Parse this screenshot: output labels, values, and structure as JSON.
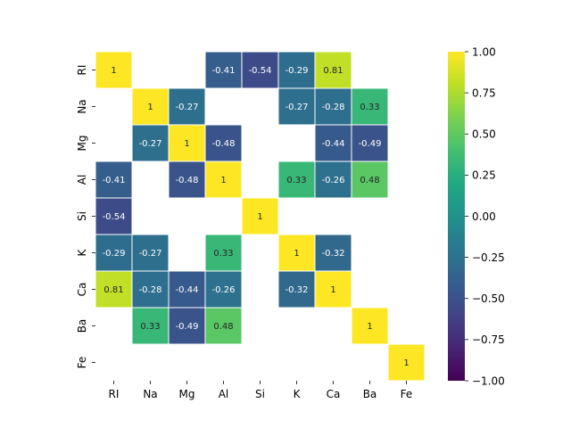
{
  "chart_data": {
    "type": "heatmap",
    "title": "",
    "xlabel": "",
    "ylabel": "",
    "row_labels": [
      "RI",
      "Na",
      "Mg",
      "Al",
      "Si",
      "K",
      "Ca",
      "Ba",
      "Fe"
    ],
    "col_labels": [
      "RI",
      "Na",
      "Mg",
      "Al",
      "Si",
      "K",
      "Ca",
      "Ba",
      "Fe"
    ],
    "values": [
      [
        1,
        null,
        null,
        -0.41,
        -0.54,
        -0.29,
        0.81,
        null,
        null
      ],
      [
        null,
        1,
        -0.27,
        null,
        null,
        -0.27,
        -0.28,
        0.33,
        null
      ],
      [
        null,
        -0.27,
        1,
        -0.48,
        null,
        null,
        -0.44,
        -0.49,
        null
      ],
      [
        -0.41,
        null,
        -0.48,
        1,
        null,
        0.33,
        -0.26,
        0.48,
        null
      ],
      [
        -0.54,
        null,
        null,
        null,
        1,
        null,
        null,
        null,
        null
      ],
      [
        -0.29,
        -0.27,
        null,
        0.33,
        null,
        1,
        -0.32,
        null,
        null
      ],
      [
        0.81,
        -0.28,
        -0.44,
        -0.26,
        null,
        -0.32,
        1,
        null,
        null
      ],
      [
        null,
        0.33,
        -0.49,
        0.48,
        null,
        null,
        null,
        1,
        null
      ],
      [
        null,
        null,
        null,
        null,
        null,
        null,
        null,
        null,
        1
      ]
    ],
    "value_labels": [
      [
        "1",
        "",
        "",
        "-0.41",
        "-0.54",
        "-0.29",
        "0.81",
        "",
        ""
      ],
      [
        "",
        "1",
        "-0.27",
        "",
        "",
        "-0.27",
        "-0.28",
        "0.33",
        ""
      ],
      [
        "",
        "-0.27",
        "1",
        "-0.48",
        "",
        "",
        "-0.44",
        "-0.49",
        ""
      ],
      [
        "-0.41",
        "",
        "-0.48",
        "1",
        "",
        "0.33",
        "-0.26",
        "0.48",
        ""
      ],
      [
        "-0.54",
        "",
        "",
        "",
        "1",
        "",
        "",
        "",
        ""
      ],
      [
        "-0.29",
        "-0.27",
        "",
        "0.33",
        "",
        "1",
        "-0.32",
        "",
        ""
      ],
      [
        "0.81",
        "-0.28",
        "-0.44",
        "-0.26",
        "",
        "-0.32",
        "1",
        "",
        ""
      ],
      [
        "",
        "0.33",
        "-0.49",
        "0.48",
        "",
        "",
        "",
        "1",
        ""
      ],
      [
        "",
        "",
        "",
        "",
        "",
        "",
        "",
        "",
        "1"
      ]
    ],
    "colormap": "viridis",
    "vmin": -1.0,
    "vmax": 1.0,
    "colorbar_ticks": [
      "1.00",
      "0.75",
      "0.50",
      "0.25",
      "0.00",
      "−0.25",
      "−0.50",
      "−0.75",
      "−1.00"
    ],
    "colorbar_tick_values": [
      1.0,
      0.75,
      0.5,
      0.25,
      0.0,
      -0.25,
      -0.5,
      -0.75,
      -1.0
    ],
    "cell_border_color": "#ffffff",
    "grid": false,
    "legend": "colorbar-right"
  }
}
